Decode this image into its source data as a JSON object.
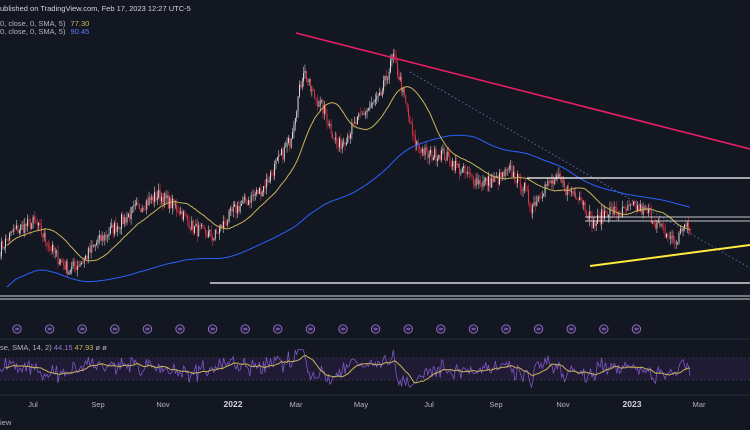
{
  "header": {
    "published": "ublished on TradingView.com, Feb 17, 2023 12:27 UTC-5",
    "ma1_label": "0, close, 0, SMA, 5)",
    "ma1_value": "77.30",
    "ma2_label": "0, close, 0, SMA, 5)",
    "ma2_value": "90.45"
  },
  "rsi_legend": {
    "label": "se, SMA, 14, 2)",
    "value1": "44.15",
    "value2": "47.93",
    "value3": "ø  ø"
  },
  "footer": {
    "text": "iew"
  },
  "colors": {
    "background": "#131722",
    "bull": "#e8e8e8",
    "bear": "#f23645",
    "ma_fast": "#c9b458",
    "ma_slow": "#2962ff",
    "trend_down": "#e91e63",
    "trend_support": "#ffeb3b",
    "horizontal": "#ffffff",
    "rsi": "#7e57c2",
    "rsi_ma": "#c9b458",
    "event_icon": "#9575cd"
  },
  "chart_data": {
    "type": "candlestick",
    "x_ticks": [
      "Jul",
      "Sep",
      "Nov",
      "2022",
      "Mar",
      "May",
      "Jul",
      "Sep",
      "Nov",
      "2023",
      "Mar"
    ],
    "price_anchors": [
      [
        0,
        72
      ],
      [
        10,
        78
      ],
      [
        25,
        81
      ],
      [
        40,
        70
      ],
      [
        50,
        65
      ],
      [
        60,
        68
      ],
      [
        70,
        74
      ],
      [
        85,
        80
      ],
      [
        100,
        86
      ],
      [
        115,
        90
      ],
      [
        130,
        85
      ],
      [
        140,
        79
      ],
      [
        155,
        76
      ],
      [
        170,
        85
      ],
      [
        190,
        92
      ],
      [
        200,
        100
      ],
      [
        210,
        108
      ],
      [
        220,
        132
      ],
      [
        225,
        125
      ],
      [
        235,
        118
      ],
      [
        245,
        106
      ],
      [
        255,
        112
      ],
      [
        265,
        118
      ],
      [
        275,
        122
      ],
      [
        285,
        136
      ],
      [
        290,
        128
      ],
      [
        300,
        108
      ],
      [
        310,
        103
      ],
      [
        320,
        104
      ],
      [
        330,
        100
      ],
      [
        340,
        96
      ],
      [
        350,
        94
      ],
      [
        360,
        95
      ],
      [
        370,
        98
      ],
      [
        380,
        92
      ],
      [
        385,
        86
      ],
      [
        395,
        93
      ],
      [
        405,
        95
      ],
      [
        410,
        92
      ],
      [
        420,
        90
      ],
      [
        430,
        80
      ],
      [
        440,
        85
      ],
      [
        450,
        84
      ],
      [
        460,
        86
      ],
      [
        470,
        84
      ],
      [
        480,
        78
      ],
      [
        490,
        74
      ],
      [
        495,
        80
      ],
      [
        500,
        78
      ]
    ],
    "event_count": 20,
    "y_range": [
      55,
      145
    ]
  }
}
